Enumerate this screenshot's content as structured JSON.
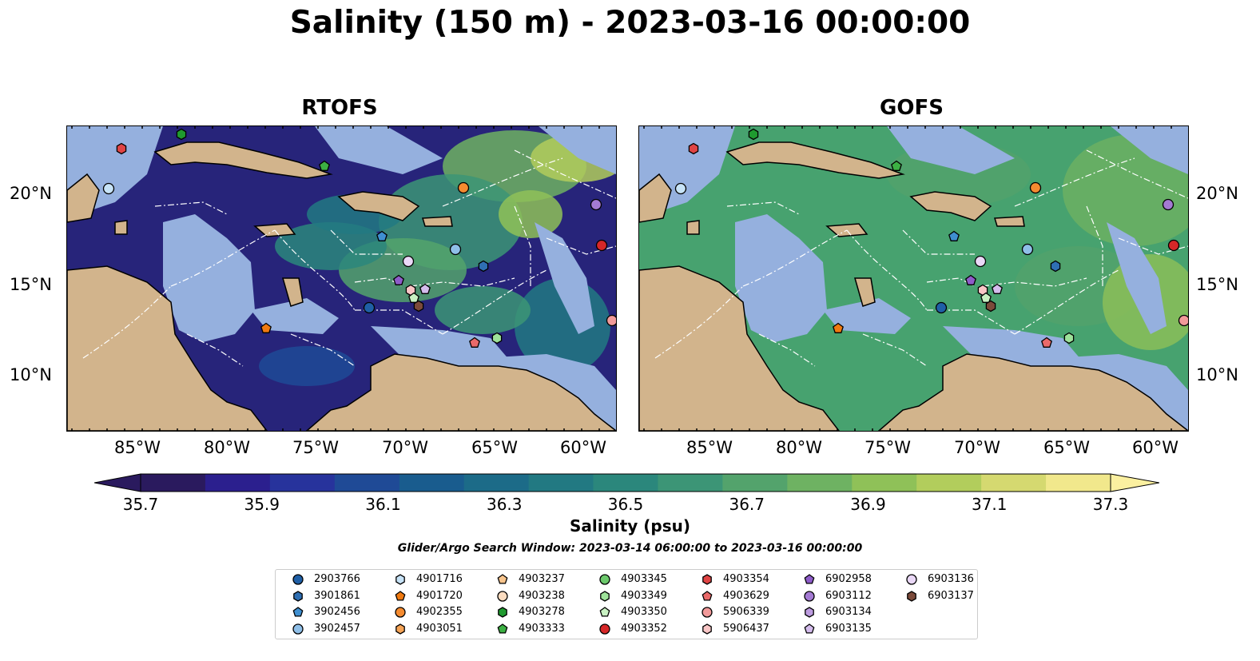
{
  "title": "Salinity (150 m) - 2023-03-16 00:00:00",
  "panels": [
    {
      "title": "RTOFS",
      "field_color": "#27247a"
    },
    {
      "title": "GOFS",
      "field_color": "#47a26f"
    }
  ],
  "map": {
    "lat_ticks": [
      "20°N",
      "15°N",
      "10°N"
    ],
    "lon_ticks": [
      "85°W",
      "80°W",
      "75°W",
      "70°W",
      "65°W",
      "60°W"
    ],
    "land_color": "#d2b48c",
    "shelf_color": "#95b0de"
  },
  "colorbar": {
    "ticks": [
      "35.7",
      "35.9",
      "36.1",
      "36.3",
      "36.5",
      "36.7",
      "36.9",
      "37.1",
      "37.3"
    ],
    "label": "Salinity (psu)",
    "colors": [
      "#2a1a5e",
      "#2b1f8e",
      "#27339c",
      "#1f4a96",
      "#195c8e",
      "#1c6b88",
      "#227982",
      "#2b877c",
      "#3c9576",
      "#53a36c",
      "#6eb262",
      "#8fc158",
      "#b2cd5c",
      "#d5d970",
      "#f1e88c"
    ],
    "range": [
      35.7,
      37.3
    ]
  },
  "search_window": "Glider/Argo Search Window: 2023-03-14 06:00:00 to 2023-03-16 00:00:00",
  "legend": [
    {
      "id": "2903766",
      "marker": "circle",
      "color": "#1f5fa6"
    },
    {
      "id": "3901861",
      "marker": "hexagon",
      "color": "#2f6fb3"
    },
    {
      "id": "3902456",
      "marker": "pentagon",
      "color": "#3f8fd0"
    },
    {
      "id": "3902457",
      "marker": "circle",
      "color": "#8fbfe8"
    },
    {
      "id": "4901716",
      "marker": "hexagon",
      "color": "#c7e3f7"
    },
    {
      "id": "4901720",
      "marker": "pentagon",
      "color": "#f07a10"
    },
    {
      "id": "4902355",
      "marker": "circle",
      "color": "#f58b30"
    },
    {
      "id": "4903051",
      "marker": "hexagon",
      "color": "#f6a456"
    },
    {
      "id": "4903237",
      "marker": "pentagon",
      "color": "#f8c58d"
    },
    {
      "id": "4903238",
      "marker": "circle",
      "color": "#fbdcc0"
    },
    {
      "id": "4903278",
      "marker": "hexagon",
      "color": "#1f9a2f"
    },
    {
      "id": "4903333",
      "marker": "pentagon",
      "color": "#3cb043"
    },
    {
      "id": "4903345",
      "marker": "circle",
      "color": "#6cc96c"
    },
    {
      "id": "4903349",
      "marker": "hexagon",
      "color": "#9ee29a"
    },
    {
      "id": "4903350",
      "marker": "pentagon",
      "color": "#c9f2c3"
    },
    {
      "id": "4903352",
      "marker": "circle",
      "color": "#d62728"
    },
    {
      "id": "4903354",
      "marker": "hexagon",
      "color": "#e04444"
    },
    {
      "id": "4903629",
      "marker": "pentagon",
      "color": "#ea6a6a"
    },
    {
      "id": "5906339",
      "marker": "circle",
      "color": "#f29a9a"
    },
    {
      "id": "5906437",
      "marker": "hexagon",
      "color": "#f9c6c6"
    },
    {
      "id": "6902958",
      "marker": "pentagon",
      "color": "#8e5cc9"
    },
    {
      "id": "6903112",
      "marker": "circle",
      "color": "#a47ad3"
    },
    {
      "id": "6903134",
      "marker": "hexagon",
      "color": "#bd9ce0"
    },
    {
      "id": "6903135",
      "marker": "pentagon",
      "color": "#d4bcec"
    },
    {
      "id": "6903136",
      "marker": "circle",
      "color": "#ead8f7"
    },
    {
      "id": "6903137",
      "marker": "hexagon",
      "color": "#7b4a3a"
    }
  ]
}
